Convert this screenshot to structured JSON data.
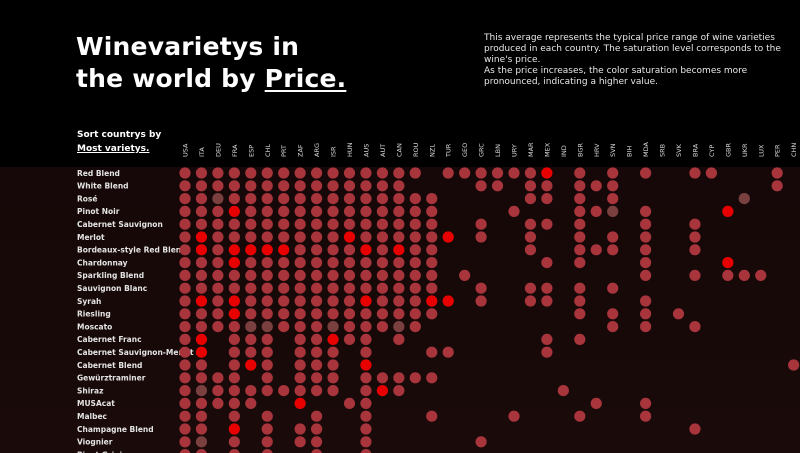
{
  "header": {
    "title_line1": "Winevarietys in",
    "title_line2_prefix": "the world by ",
    "title_line2_link": "Price."
  },
  "description": {
    "p1": "This average represents the typical price range of wine varieties produced in each country. The saturation level corresponds to the wine's price.",
    "p2": "As the price increases, the color saturation becomes more pronounced, indicating a higher value."
  },
  "sort": {
    "label": "Sort countrys by",
    "option": "Most varietys."
  },
  "colors": {
    "background": "#000000",
    "low": "#7a4040",
    "mid": "#a8343c",
    "high": "#e80000"
  },
  "chart_data": {
    "type": "heatmap",
    "encoding": "dot matrix; color saturation = price level (0 = no data, 1 = low, 2 = mid, 3 = high)",
    "columns": [
      "USA",
      "ITA",
      "DEU",
      "FRA",
      "ESP",
      "CHL",
      "PRT",
      "ZAF",
      "ARG",
      "ISR",
      "HUN",
      "AUS",
      "AUT",
      "CAN",
      "ROU",
      "NZL",
      "TUR",
      "GEO",
      "GRC",
      "LBN",
      "URY",
      "MAR",
      "MEX",
      "IND",
      "BGR",
      "HRV",
      "SVN",
      "BIH",
      "MDA",
      "SRB",
      "SVK",
      "BRA",
      "CYP",
      "GBR",
      "UKR",
      "LUX",
      "PER",
      "CHN"
    ],
    "rows": [
      {
        "name": "Red Blend",
        "levels": [
          2,
          2,
          2,
          2,
          2,
          2,
          2,
          2,
          2,
          2,
          2,
          2,
          2,
          2,
          2,
          0,
          2,
          2,
          2,
          2,
          2,
          2,
          3,
          0,
          2,
          0,
          2,
          0,
          2,
          0,
          0,
          2,
          2,
          0,
          0,
          0,
          2,
          0
        ]
      },
      {
        "name": "White Blend",
        "levels": [
          2,
          2,
          2,
          2,
          2,
          2,
          2,
          2,
          2,
          2,
          2,
          2,
          2,
          2,
          0,
          0,
          0,
          0,
          2,
          2,
          0,
          2,
          2,
          0,
          2,
          2,
          2,
          0,
          0,
          0,
          0,
          0,
          0,
          0,
          0,
          0,
          2,
          0
        ]
      },
      {
        "name": "Rosé",
        "levels": [
          2,
          2,
          1,
          2,
          2,
          2,
          2,
          2,
          2,
          2,
          2,
          2,
          2,
          2,
          2,
          2,
          0,
          0,
          0,
          0,
          0,
          2,
          2,
          0,
          2,
          0,
          2,
          0,
          0,
          0,
          0,
          0,
          0,
          0,
          1,
          0,
          0,
          0
        ]
      },
      {
        "name": "Pinot Noir",
        "levels": [
          2,
          2,
          2,
          3,
          2,
          2,
          2,
          2,
          2,
          2,
          2,
          2,
          2,
          2,
          2,
          2,
          0,
          0,
          0,
          0,
          2,
          0,
          0,
          0,
          2,
          2,
          1,
          0,
          2,
          0,
          0,
          0,
          0,
          3,
          0,
          0,
          0,
          0
        ]
      },
      {
        "name": "Cabernet Sauvignon",
        "levels": [
          2,
          2,
          2,
          2,
          2,
          2,
          2,
          2,
          2,
          2,
          2,
          2,
          2,
          2,
          2,
          2,
          0,
          0,
          2,
          0,
          0,
          2,
          2,
          0,
          2,
          0,
          0,
          0,
          2,
          0,
          0,
          2,
          0,
          0,
          0,
          0,
          0,
          0
        ]
      },
      {
        "name": "Merlot",
        "levels": [
          2,
          3,
          2,
          2,
          2,
          2,
          2,
          2,
          2,
          2,
          3,
          2,
          2,
          2,
          2,
          2,
          3,
          0,
          2,
          0,
          0,
          2,
          0,
          0,
          2,
          0,
          2,
          0,
          2,
          0,
          0,
          2,
          0,
          0,
          0,
          0,
          0,
          0
        ]
      },
      {
        "name": "Bordeaux-style Red Blend",
        "levels": [
          2,
          3,
          2,
          3,
          3,
          3,
          3,
          2,
          2,
          2,
          2,
          3,
          2,
          3,
          2,
          2,
          0,
          0,
          0,
          0,
          0,
          2,
          0,
          0,
          2,
          2,
          2,
          0,
          2,
          0,
          0,
          2,
          0,
          0,
          0,
          0,
          0,
          0
        ]
      },
      {
        "name": "Chardonnay",
        "levels": [
          2,
          2,
          2,
          3,
          2,
          2,
          2,
          2,
          2,
          2,
          2,
          2,
          2,
          2,
          2,
          2,
          0,
          0,
          0,
          0,
          0,
          0,
          2,
          0,
          2,
          0,
          0,
          0,
          2,
          0,
          0,
          0,
          0,
          3,
          0,
          0,
          0,
          0
        ]
      },
      {
        "name": "Sparkling Blend",
        "levels": [
          2,
          2,
          2,
          2,
          2,
          2,
          2,
          2,
          2,
          2,
          2,
          2,
          2,
          2,
          2,
          2,
          0,
          2,
          0,
          0,
          0,
          0,
          0,
          0,
          0,
          0,
          0,
          0,
          2,
          0,
          0,
          2,
          0,
          2,
          2,
          2,
          0,
          0
        ]
      },
      {
        "name": "Sauvignon Blanc",
        "levels": [
          2,
          2,
          2,
          2,
          2,
          2,
          2,
          2,
          2,
          2,
          2,
          2,
          2,
          2,
          2,
          2,
          0,
          0,
          2,
          0,
          0,
          2,
          2,
          0,
          2,
          0,
          2,
          0,
          0,
          0,
          0,
          0,
          0,
          0,
          0,
          0,
          0,
          0
        ]
      },
      {
        "name": "Syrah",
        "levels": [
          2,
          3,
          2,
          3,
          2,
          2,
          2,
          2,
          2,
          2,
          2,
          3,
          2,
          2,
          2,
          3,
          3,
          0,
          2,
          0,
          0,
          2,
          2,
          0,
          2,
          0,
          0,
          0,
          2,
          0,
          0,
          0,
          0,
          0,
          0,
          0,
          0,
          0
        ]
      },
      {
        "name": "Riesling",
        "levels": [
          2,
          2,
          2,
          3,
          2,
          2,
          2,
          2,
          2,
          2,
          2,
          2,
          2,
          2,
          2,
          2,
          0,
          0,
          0,
          0,
          0,
          0,
          0,
          0,
          2,
          0,
          2,
          0,
          2,
          0,
          2,
          0,
          0,
          0,
          0,
          0,
          0,
          0
        ]
      },
      {
        "name": "Moscato",
        "levels": [
          2,
          2,
          2,
          2,
          1,
          1,
          2,
          2,
          2,
          1,
          2,
          2,
          2,
          1,
          2,
          0,
          0,
          0,
          0,
          0,
          0,
          0,
          0,
          0,
          0,
          0,
          2,
          0,
          2,
          0,
          0,
          2,
          0,
          0,
          0,
          0,
          0,
          0
        ]
      },
      {
        "name": "Cabernet Franc",
        "levels": [
          2,
          3,
          0,
          2,
          2,
          2,
          0,
          2,
          2,
          3,
          2,
          2,
          0,
          2,
          0,
          0,
          0,
          0,
          0,
          0,
          0,
          0,
          2,
          0,
          2,
          0,
          0,
          0,
          0,
          0,
          0,
          0,
          0,
          0,
          0,
          0,
          0,
          0
        ]
      },
      {
        "name": "Cabernet Sauvignon-Merlot",
        "levels": [
          2,
          3,
          0,
          2,
          2,
          2,
          0,
          2,
          2,
          2,
          0,
          2,
          0,
          0,
          0,
          2,
          2,
          0,
          0,
          0,
          0,
          0,
          2,
          0,
          0,
          0,
          0,
          0,
          0,
          0,
          0,
          0,
          0,
          0,
          0,
          0,
          0,
          0
        ]
      },
      {
        "name": "Cabernet Blend",
        "levels": [
          2,
          2,
          0,
          2,
          3,
          2,
          0,
          2,
          2,
          2,
          0,
          3,
          0,
          0,
          0,
          0,
          0,
          0,
          0,
          0,
          0,
          0,
          0,
          0,
          0,
          0,
          0,
          0,
          0,
          0,
          0,
          0,
          0,
          0,
          0,
          0,
          0,
          2
        ]
      },
      {
        "name": "Gewürztraminer",
        "levels": [
          2,
          2,
          2,
          2,
          0,
          2,
          0,
          2,
          2,
          2,
          0,
          2,
          2,
          2,
          2,
          2,
          0,
          0,
          0,
          0,
          0,
          0,
          0,
          0,
          0,
          0,
          0,
          0,
          0,
          0,
          0,
          0,
          0,
          0,
          0,
          0,
          0,
          0
        ]
      },
      {
        "name": "Shiraz",
        "levels": [
          2,
          1,
          2,
          2,
          2,
          2,
          2,
          2,
          2,
          2,
          0,
          2,
          3,
          2,
          0,
          0,
          0,
          0,
          0,
          0,
          0,
          0,
          0,
          2,
          0,
          0,
          0,
          0,
          0,
          0,
          0,
          0,
          0,
          0,
          0,
          0,
          0,
          0
        ]
      },
      {
        "name": "MUSAcat",
        "levels": [
          2,
          2,
          2,
          2,
          2,
          0,
          0,
          3,
          0,
          0,
          2,
          2,
          0,
          0,
          0,
          0,
          0,
          0,
          0,
          0,
          0,
          0,
          0,
          0,
          0,
          2,
          0,
          0,
          2,
          0,
          0,
          0,
          0,
          0,
          0,
          0,
          0,
          0
        ]
      },
      {
        "name": "Malbec",
        "levels": [
          2,
          2,
          0,
          2,
          0,
          2,
          0,
          0,
          2,
          0,
          0,
          2,
          0,
          0,
          0,
          2,
          0,
          0,
          0,
          0,
          2,
          0,
          0,
          0,
          2,
          0,
          0,
          0,
          2,
          0,
          0,
          0,
          0,
          0,
          0,
          0,
          0,
          0
        ]
      },
      {
        "name": "Champagne Blend",
        "levels": [
          2,
          2,
          0,
          3,
          0,
          2,
          0,
          2,
          2,
          0,
          0,
          2,
          0,
          0,
          0,
          0,
          0,
          0,
          0,
          0,
          0,
          0,
          0,
          0,
          0,
          0,
          0,
          0,
          0,
          0,
          0,
          2,
          0,
          0,
          0,
          0,
          0,
          0
        ]
      },
      {
        "name": "Viognier",
        "levels": [
          2,
          1,
          0,
          2,
          0,
          2,
          0,
          2,
          2,
          0,
          0,
          2,
          0,
          0,
          0,
          0,
          0,
          0,
          2,
          0,
          0,
          0,
          0,
          0,
          0,
          0,
          0,
          0,
          0,
          0,
          0,
          0,
          0,
          0,
          0,
          0,
          0,
          0
        ]
      },
      {
        "name": "Pinot Grigio",
        "levels": [
          2,
          2,
          0,
          2,
          0,
          2,
          0,
          0,
          2,
          0,
          0,
          2,
          0,
          0,
          0,
          0,
          0,
          0,
          0,
          0,
          0,
          0,
          0,
          0,
          0,
          0,
          0,
          0,
          0,
          0,
          0,
          0,
          0,
          0,
          0,
          0,
          0,
          0
        ]
      }
    ]
  }
}
